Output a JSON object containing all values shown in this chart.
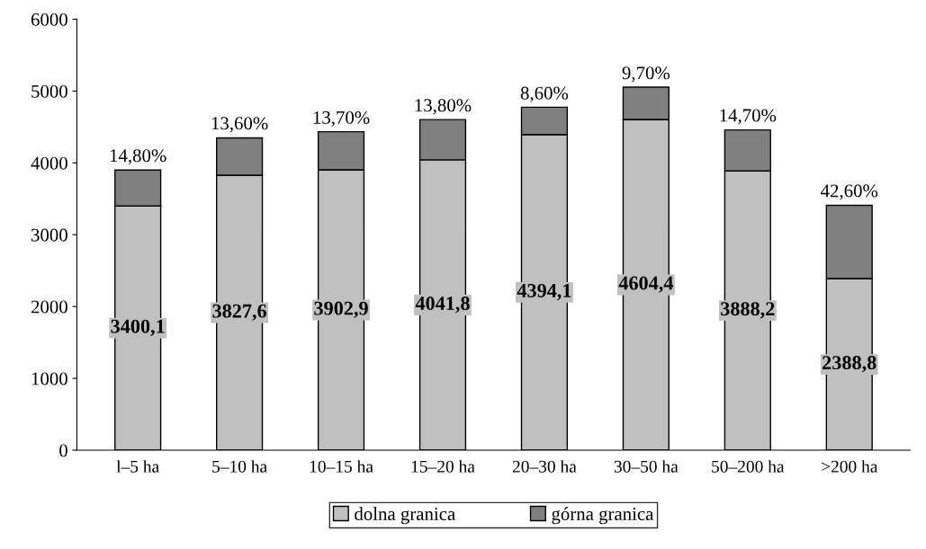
{
  "chart_data": {
    "type": "bar",
    "stacked": true,
    "categories": [
      "l–5 ha",
      "5–10 ha",
      "10–15 ha",
      "15–20 ha",
      "20–30 ha",
      "30–50 ha",
      "50–200 ha",
      ">200 ha"
    ],
    "series": [
      {
        "name": "dolna granica",
        "color": "#c0c0c0",
        "values": [
          3400.1,
          3827.6,
          3902.9,
          4041.8,
          4394.1,
          4604.4,
          3888.2,
          2388.8
        ],
        "value_labels": [
          "3400,1",
          "3827,6",
          "3902,9",
          "4041,8",
          "4394,1",
          "4604,4",
          "3888,2",
          "2388,8"
        ]
      },
      {
        "name": "górna granica",
        "color": "#808080",
        "values": [
          500,
          520,
          530,
          560,
          380,
          450,
          570,
          1020
        ]
      }
    ],
    "annotations": [
      {
        "text": "14,80%",
        "x": "l–5 ha",
        "y": 3900
      },
      {
        "text": "13,60%",
        "x": "5–10 ha",
        "y": 4350
      },
      {
        "text": "13,70%",
        "x": "10–15 ha",
        "y": 4430
      },
      {
        "text": "13,80%",
        "x": "15–20 ha",
        "y": 4600
      },
      {
        "text": "8,60%",
        "x": "20–30 ha",
        "y": 4770
      },
      {
        "text": "9,70%",
        "x": "30–50 ha",
        "y": 5050
      },
      {
        "text": "14,70%",
        "x": "50–200 ha",
        "y": 4460
      },
      {
        "text": "42,60%",
        "x": ">200 ha",
        "y": 3410
      }
    ],
    "ylim": [
      0,
      6000
    ],
    "yticks": [
      0,
      1000,
      2000,
      3000,
      4000,
      5000,
      6000
    ],
    "grid": false,
    "legend": "bottom"
  }
}
